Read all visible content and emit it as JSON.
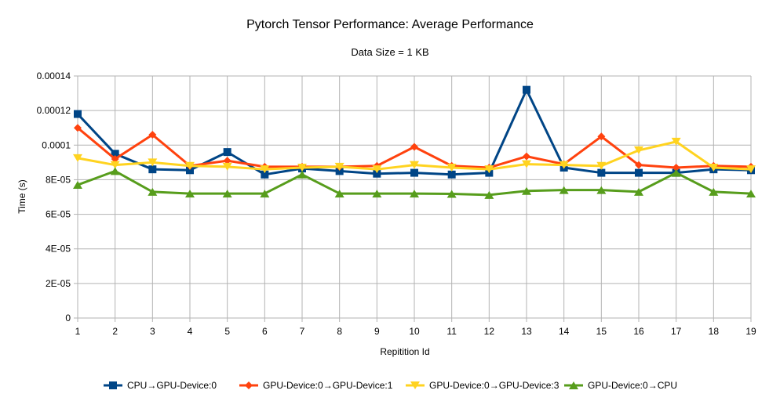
{
  "chart_data": {
    "type": "line",
    "title": "Pytorch Tensor Performance: Average Performance",
    "subtitle": "Data Size = 1 KB",
    "xlabel": "Repitition Id",
    "ylabel": "Time (s)",
    "x": [
      1,
      2,
      3,
      4,
      5,
      6,
      7,
      8,
      9,
      10,
      11,
      12,
      13,
      14,
      15,
      16,
      17,
      18,
      19
    ],
    "ylim": [
      0,
      0.00014
    ],
    "yticks": [
      0,
      2e-05,
      4e-05,
      6e-05,
      8e-05,
      0.0001,
      0.00012,
      0.00014
    ],
    "ytick_labels": [
      "0",
      "2E-05",
      "4E-05",
      "6E-05",
      "8E-05",
      "0.0001",
      "0.00012",
      "0.00014"
    ],
    "grid": true,
    "legend_position": "bottom",
    "series": [
      {
        "name": "CPU→GPU-Device:0",
        "color": "#004586",
        "marker": "square",
        "values": [
          0.000118,
          9.5e-05,
          8.6e-05,
          8.55e-05,
          9.6e-05,
          8.3e-05,
          8.65e-05,
          8.5e-05,
          8.35e-05,
          8.4e-05,
          8.3e-05,
          8.4e-05,
          0.000132,
          8.7e-05,
          8.4e-05,
          8.4e-05,
          8.4e-05,
          8.6e-05,
          8.55e-05
        ]
      },
      {
        "name": "GPU-Device:0→GPU-Device:1",
        "color": "#ff420e",
        "marker": "diamond",
        "values": [
          0.00011,
          9.2e-05,
          0.000106,
          8.8e-05,
          9.1e-05,
          8.75e-05,
          8.75e-05,
          8.75e-05,
          8.8e-05,
          9.9e-05,
          8.8e-05,
          8.7e-05,
          9.35e-05,
          8.9e-05,
          0.000105,
          8.85e-05,
          8.7e-05,
          8.8e-05,
          8.75e-05
        ]
      },
      {
        "name": "GPU-Device:0→GPU-Device:3",
        "color": "#ffd320",
        "marker": "triangle-down",
        "values": [
          9.25e-05,
          8.85e-05,
          9e-05,
          8.8e-05,
          8.75e-05,
          8.6e-05,
          8.7e-05,
          8.75e-05,
          8.6e-05,
          8.85e-05,
          8.7e-05,
          8.6e-05,
          8.9e-05,
          8.85e-05,
          8.8e-05,
          9.7e-05,
          0.000102,
          8.7e-05,
          8.6e-05
        ]
      },
      {
        "name": "GPU-Device:0→CPU",
        "color": "#579d1c",
        "marker": "triangle-up",
        "values": [
          7.7e-05,
          8.5e-05,
          7.3e-05,
          7.2e-05,
          7.2e-05,
          7.2e-05,
          8.3e-05,
          7.2e-05,
          7.2e-05,
          7.2e-05,
          7.18e-05,
          7.12e-05,
          7.35e-05,
          7.4e-05,
          7.4e-05,
          7.3e-05,
          8.4e-05,
          7.3e-05,
          7.2e-05
        ]
      }
    ]
  }
}
